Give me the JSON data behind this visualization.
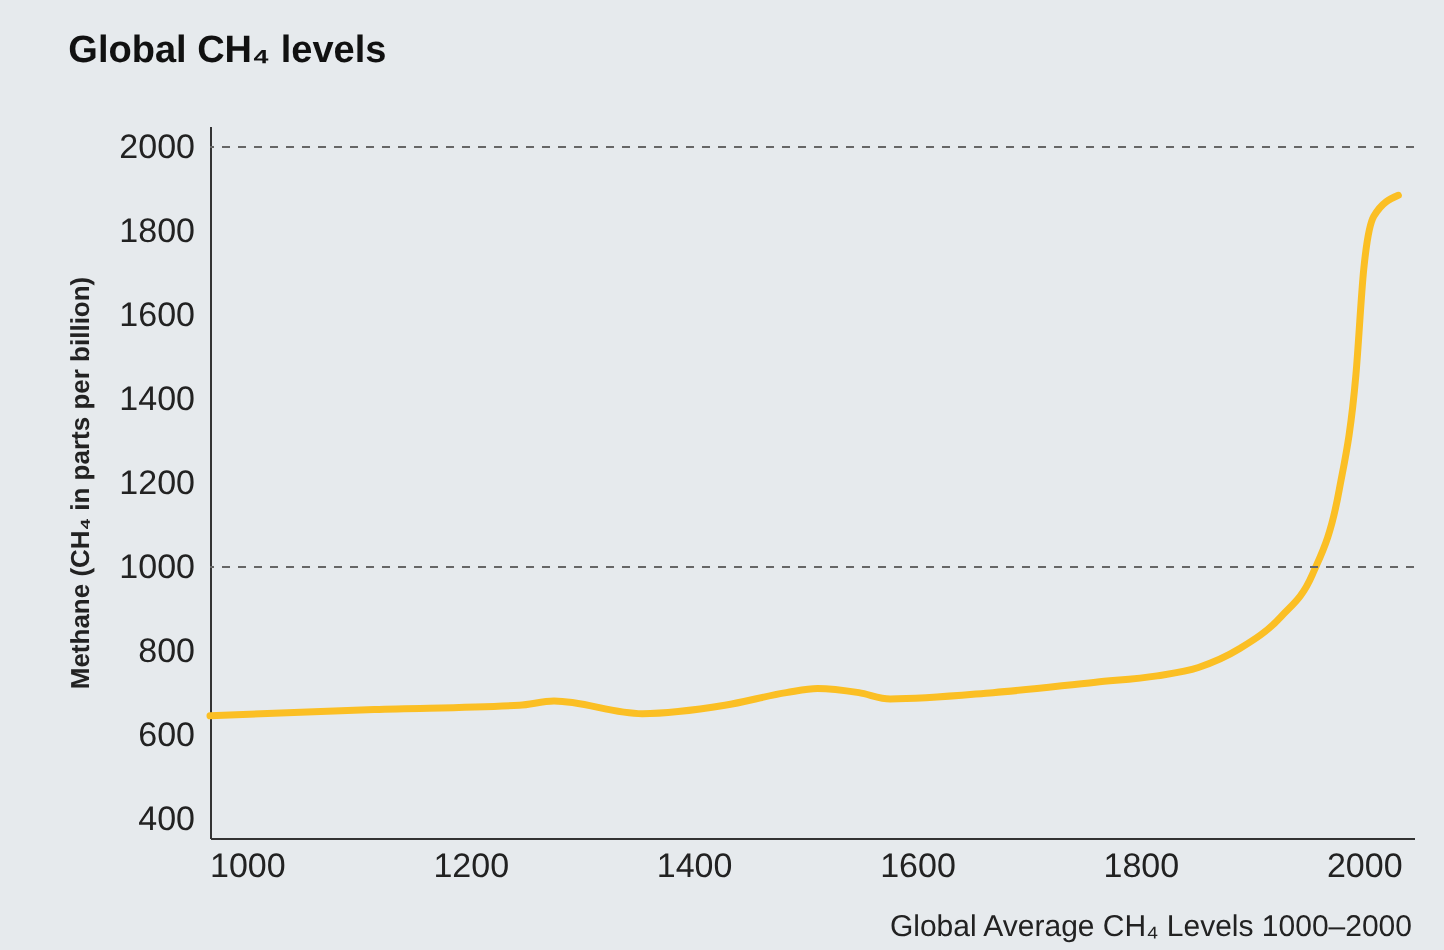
{
  "chart_data": {
    "type": "line",
    "title": "Global CH₄ levels",
    "ylabel": "Methane (CH₄ in parts per billion)",
    "annotations": [
      "Global Average CH₄ Levels 1000–2000"
    ],
    "x": [
      967,
      1114,
      1244,
      1275,
      1354,
      1428,
      1483,
      1511,
      1548,
      1576,
      1668,
      1760,
      1815,
      1852,
      1889,
      1926,
      1954,
      1978,
      1993,
      2000,
      2009,
      2031
    ],
    "series": [
      {
        "color": "#fbbf24",
        "values": [
          646,
          661,
          671,
          681,
          651,
          671,
          701,
          711,
          701,
          686,
          701,
          726,
          741,
          761,
          806,
          882,
          982,
          1183,
          1458,
          1709,
          1835,
          1885
        ]
      }
    ],
    "xlim": [
      967,
      2045
    ],
    "xticks": [
      1000,
      1200,
      1400,
      1600,
      1800,
      2000
    ],
    "ylim": [
      355,
      2050
    ],
    "yticks": [
      400,
      600,
      800,
      1000,
      1200,
      1400,
      1600,
      1800,
      2000
    ],
    "ref_lines": [
      {
        "axis": "y",
        "value": 1000,
        "line_style": "dashed",
        "color": "#666666"
      },
      {
        "axis": "y",
        "value": 2000,
        "line_style": "dashed",
        "color": "#666666"
      }
    ],
    "grid": false,
    "marker": "none",
    "line_style": "solid"
  }
}
